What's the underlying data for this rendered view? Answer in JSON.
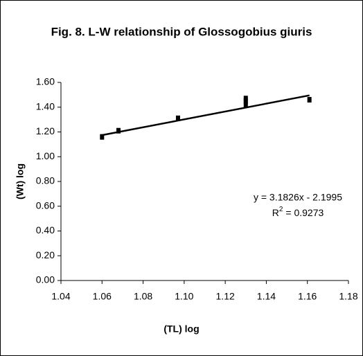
{
  "chart_data": {
    "type": "scatter",
    "title": "Fig. 8. L-W relationship of Glossogobius giuris",
    "x_label": "(TL) log",
    "y_label": "(Wt) log",
    "x": [
      1.06,
      1.068,
      1.097,
      1.13,
      1.13,
      1.13,
      1.161
    ],
    "values": [
      1.16,
      1.21,
      1.31,
      1.42,
      1.45,
      1.47,
      1.46
    ],
    "color": "#000000",
    "xlim": [
      1.04,
      1.18
    ],
    "xticks": [
      {
        "value": 1.04,
        "label": "1.04"
      },
      {
        "value": 1.06,
        "label": "1.06"
      },
      {
        "value": 1.08,
        "label": "1.08"
      },
      {
        "value": 1.1,
        "label": "1.10"
      },
      {
        "value": 1.12,
        "label": "1.12"
      },
      {
        "value": 1.14,
        "label": "1.14"
      },
      {
        "value": 1.16,
        "label": "1.16"
      },
      {
        "value": 1.18,
        "label": "1.18"
      }
    ],
    "ylim": [
      0,
      1.6
    ],
    "yticks": [
      {
        "value": 0,
        "label": "0.00"
      },
      {
        "value": 0.2,
        "label": "0.20"
      },
      {
        "value": 0.4,
        "label": "0.40"
      },
      {
        "value": 0.6,
        "label": "0.60"
      },
      {
        "value": 0.8,
        "label": "0.80"
      },
      {
        "value": 1,
        "label": "1.00"
      },
      {
        "value": 1.2,
        "label": "1.20"
      },
      {
        "value": 1.4,
        "label": "1.40"
      },
      {
        "value": 1.6,
        "label": "1.60"
      }
    ],
    "grid": false,
    "trendline": {
      "slope": 3.1826,
      "intercept": -2.1995,
      "equation": "y = 3.1826x - 2.1995",
      "r2_symbol": "R",
      "r2_exponent": "2",
      "r2_text": "= 0.9273"
    }
  }
}
